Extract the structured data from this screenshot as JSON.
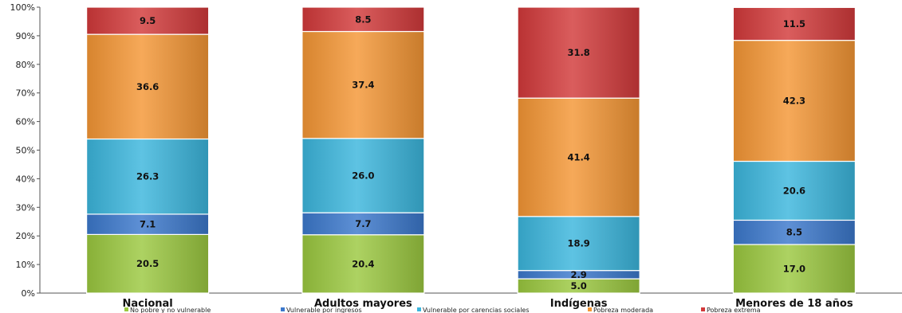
{
  "chart_data": {
    "type": "bar",
    "stacked": true,
    "categories": [
      "Nacional",
      "Adultos mayores",
      "Indígenas",
      "Menores de 18 años"
    ],
    "series": [
      {
        "name": "No pobre y no vulnerable",
        "color": "#9bc83f",
        "values": [
          20.5,
          20.4,
          5.0,
          17.0
        ]
      },
      {
        "name": "Vulnerable por ingresos",
        "color": "#3b78cc",
        "values": [
          7.1,
          7.7,
          2.9,
          8.5
        ]
      },
      {
        "name": "Vulnerable por carencias sociales",
        "color": "#3bb6dd",
        "values": [
          26.3,
          26.0,
          18.9,
          20.6
        ]
      },
      {
        "name": "Pobreza moderada",
        "color": "#f49634",
        "values": [
          36.6,
          37.4,
          41.4,
          42.3
        ]
      },
      {
        "name": "Pobreza extrema",
        "color": "#d2393a",
        "values": [
          9.5,
          8.5,
          31.8,
          11.5
        ]
      }
    ],
    "yticks": [
      "0%",
      "10%",
      "20%",
      "30%",
      "40%",
      "50%",
      "60%",
      "70%",
      "80%",
      "90%",
      "100%"
    ],
    "ylim": [
      0,
      100
    ],
    "grid": false,
    "legend": "bottom"
  }
}
